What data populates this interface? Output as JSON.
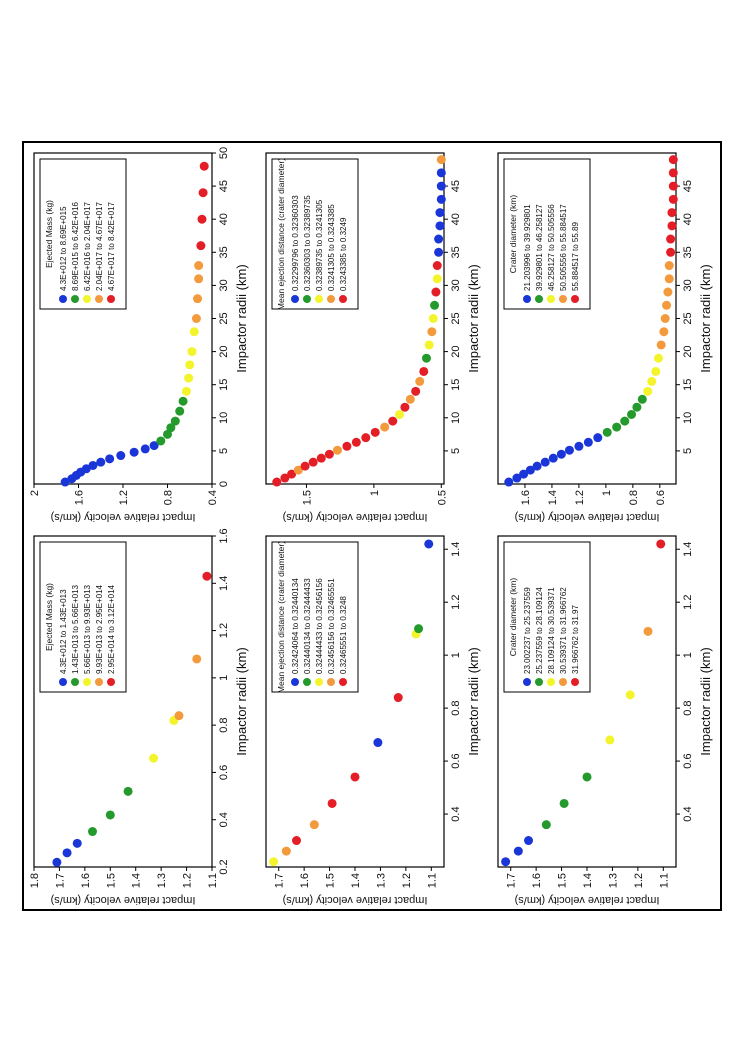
{
  "chart_data": [
    {
      "type": "scatter",
      "xlabel": "Impactor radii (km)",
      "ylabel": "Impact relative velocity (km/s)",
      "xlim": [
        0.2,
        1.6
      ],
      "ylim": [
        1.8,
        1.1
      ],
      "xticks": [
        "0.2",
        "0.4",
        "0.6",
        "0.8",
        "1",
        "1.2",
        "1.4",
        "1.6"
      ],
      "yticks": [
        "1.8",
        "1.7",
        "1.6",
        "1.5",
        "1.4",
        "1.3",
        "1.2",
        "1.1"
      ],
      "legend": {
        "title": "Ejected Mass (kg)",
        "entries": [
          "4.3E+012  to  1.43E+013",
          "1.43E+013  to  5.66E+013",
          "5.66E+013  to  9.93E+013",
          "9.93E+013  to  2.95E+014",
          "2.95E+014  to  3.12E+014"
        ],
        "colors": [
          "#1b36d8",
          "#249a2c",
          "#f4f42c",
          "#f39a3c",
          "#e41e26"
        ]
      },
      "points": [
        [
          0.22,
          1.71,
          0
        ],
        [
          0.26,
          1.67,
          0
        ],
        [
          0.3,
          1.63,
          0
        ],
        [
          0.35,
          1.57,
          1
        ],
        [
          0.42,
          1.5,
          1
        ],
        [
          0.52,
          1.43,
          1
        ],
        [
          0.66,
          1.33,
          2
        ],
        [
          0.82,
          1.25,
          2
        ],
        [
          0.84,
          1.23,
          3
        ],
        [
          1.08,
          1.16,
          3
        ],
        [
          1.43,
          1.12,
          4
        ]
      ]
    },
    {
      "type": "scatter",
      "xlabel": "Impactor radii (km)",
      "ylabel": "Impact relative velocity (km/s)",
      "xlim": [
        0,
        50
      ],
      "ylim": [
        2,
        0.4
      ],
      "xticks": [
        "0",
        "5",
        "10",
        "15",
        "20",
        "25",
        "30",
        "35",
        "40",
        "45",
        "50"
      ],
      "yticks": [
        "2",
        "1.6",
        "1.2",
        "0.8",
        "0.4"
      ],
      "legend": {
        "title": "Ejected Mass (kg)",
        "entries": [
          "4.3E+012  to  8.69E+015",
          "8.69E+015  to  6.42E+016",
          "6.42E+016  to  2.04E+017",
          "2.04E+017  to  4.67E+017",
          "4.67E+017  to  8.42E+017"
        ],
        "colors": [
          "#1b36d8",
          "#249a2c",
          "#f4f42c",
          "#f39a3c",
          "#e41e26"
        ]
      },
      "points": [
        [
          0.3,
          1.72,
          0
        ],
        [
          0.8,
          1.66,
          0
        ],
        [
          1.3,
          1.62,
          0
        ],
        [
          1.8,
          1.58,
          0
        ],
        [
          2.3,
          1.53,
          0
        ],
        [
          2.8,
          1.47,
          0
        ],
        [
          3.3,
          1.4,
          0
        ],
        [
          3.8,
          1.32,
          0
        ],
        [
          4.3,
          1.22,
          0
        ],
        [
          4.8,
          1.1,
          0
        ],
        [
          5.3,
          1.0,
          0
        ],
        [
          5.8,
          0.92,
          0
        ],
        [
          6.5,
          0.86,
          1
        ],
        [
          7.5,
          0.8,
          1
        ],
        [
          8.5,
          0.77,
          1
        ],
        [
          9.5,
          0.73,
          1
        ],
        [
          11,
          0.69,
          1
        ],
        [
          12.5,
          0.66,
          1
        ],
        [
          14,
          0.63,
          2
        ],
        [
          16,
          0.61,
          2
        ],
        [
          18,
          0.6,
          2
        ],
        [
          20,
          0.58,
          2
        ],
        [
          23,
          0.56,
          2
        ],
        [
          25,
          0.54,
          3
        ],
        [
          28,
          0.53,
          3
        ],
        [
          31,
          0.52,
          3
        ],
        [
          33,
          0.52,
          3
        ],
        [
          36,
          0.5,
          4
        ],
        [
          40,
          0.49,
          4
        ],
        [
          44,
          0.48,
          4
        ],
        [
          48,
          0.47,
          4
        ]
      ]
    },
    {
      "type": "scatter",
      "xlabel": "Impactor radii (km)",
      "ylabel": "Impact relative velocity (km/s)",
      "xlim": [
        0.2,
        1.45
      ],
      "ylim": [
        1.75,
        1.05
      ],
      "xticks": [
        "0.4",
        "0.6",
        "0.8",
        "1",
        "1.2",
        "1.4"
      ],
      "yticks": [
        "1.7",
        "1.6",
        "1.5",
        "1.4",
        "1.3",
        "1.2",
        "1.1"
      ],
      "legend": {
        "title": "Mean ejection distance (crater diameter)",
        "entries": [
          "0.32424064  to  0.32440134",
          "0.32440134  to  0.32444433",
          "0.32444433  to  0.32456156",
          "0.32456156  to  0.32465551",
          "0.32465551  to  0.3248"
        ],
        "colors": [
          "#1b36d8",
          "#249a2c",
          "#f4f42c",
          "#f39a3c",
          "#e41e26"
        ]
      },
      "points": [
        [
          0.22,
          1.72,
          2
        ],
        [
          0.26,
          1.67,
          3
        ],
        [
          0.3,
          1.63,
          4
        ],
        [
          0.36,
          1.56,
          3
        ],
        [
          0.44,
          1.49,
          4
        ],
        [
          0.54,
          1.4,
          4
        ],
        [
          0.67,
          1.31,
          0
        ],
        [
          0.84,
          1.23,
          4
        ],
        [
          1.08,
          1.16,
          2
        ],
        [
          1.1,
          1.15,
          1
        ],
        [
          1.42,
          1.11,
          0
        ]
      ]
    },
    {
      "type": "scatter",
      "xlabel": "Impactor radii (km)",
      "ylabel": "Impact relative velocity (km/s)",
      "xlim": [
        0,
        50
      ],
      "ylim": [
        1.8,
        0.48
      ],
      "xticks": [
        "5",
        "10",
        "15",
        "20",
        "25",
        "30",
        "35",
        "40",
        "45"
      ],
      "yticks": [
        "1.5",
        "1",
        "0.5"
      ],
      "legend": {
        "title": "Mean ejection distance (crater diameter)",
        "entries": [
          "0.32299796  to  0.32360303",
          "0.32360303  to  0.32389735",
          "0.32389735  to  0.3241305",
          "0.3241305  to  0.3243385",
          "0.3243385  to  0.3249"
        ],
        "colors": [
          "#1b36d8",
          "#249a2c",
          "#f4f42c",
          "#f39a3c",
          "#e41e26"
        ]
      },
      "points": [
        [
          0.3,
          1.72,
          4
        ],
        [
          0.9,
          1.66,
          4
        ],
        [
          1.5,
          1.61,
          4
        ],
        [
          2.1,
          1.56,
          3
        ],
        [
          2.7,
          1.51,
          4
        ],
        [
          3.3,
          1.45,
          4
        ],
        [
          3.9,
          1.39,
          4
        ],
        [
          4.5,
          1.33,
          4
        ],
        [
          5.1,
          1.27,
          3
        ],
        [
          5.7,
          1.2,
          4
        ],
        [
          6.3,
          1.13,
          4
        ],
        [
          7.0,
          1.06,
          4
        ],
        [
          7.8,
          0.99,
          4
        ],
        [
          8.6,
          0.92,
          3
        ],
        [
          9.5,
          0.86,
          4
        ],
        [
          10.5,
          0.81,
          2
        ],
        [
          11.6,
          0.77,
          4
        ],
        [
          12.8,
          0.73,
          3
        ],
        [
          14,
          0.69,
          4
        ],
        [
          15.5,
          0.66,
          3
        ],
        [
          17,
          0.63,
          4
        ],
        [
          19,
          0.61,
          1
        ],
        [
          21,
          0.59,
          2
        ],
        [
          23,
          0.57,
          3
        ],
        [
          25,
          0.56,
          2
        ],
        [
          27,
          0.55,
          1
        ],
        [
          29,
          0.54,
          4
        ],
        [
          31,
          0.53,
          2
        ],
        [
          33,
          0.53,
          4
        ],
        [
          35,
          0.52,
          0
        ],
        [
          37,
          0.52,
          0
        ],
        [
          39,
          0.51,
          0
        ],
        [
          41,
          0.51,
          0
        ],
        [
          43,
          0.5,
          0
        ],
        [
          45,
          0.5,
          0
        ],
        [
          47,
          0.5,
          0
        ],
        [
          49,
          0.5,
          3
        ]
      ]
    },
    {
      "type": "scatter",
      "xlabel": "Impactor radii (km)",
      "ylabel": "Impact relative velocity (km/s)",
      "xlim": [
        0.2,
        1.45
      ],
      "ylim": [
        1.75,
        1.05
      ],
      "xticks": [
        "0.4",
        "0.6",
        "0.8",
        "1",
        "1.2",
        "1.4"
      ],
      "yticks": [
        "1.7",
        "1.6",
        "1.5",
        "1.4",
        "1.3",
        "1.2",
        "1.1"
      ],
      "legend": {
        "title": "Crater diameter (km)",
        "entries": [
          "23.002237  to  25.237559",
          "25.237559  to  28.109124",
          "28.109124  to  30.539371",
          "30.539371  to  31.966762",
          "31.966762  to  31.97"
        ],
        "colors": [
          "#1b36d8",
          "#249a2c",
          "#f4f42c",
          "#f39a3c",
          "#e41e26"
        ]
      },
      "points": [
        [
          0.22,
          1.72,
          0
        ],
        [
          0.26,
          1.67,
          0
        ],
        [
          0.3,
          1.63,
          0
        ],
        [
          0.36,
          1.56,
          1
        ],
        [
          0.44,
          1.49,
          1
        ],
        [
          0.54,
          1.4,
          1
        ],
        [
          0.68,
          1.31,
          2
        ],
        [
          0.85,
          1.23,
          2
        ],
        [
          1.09,
          1.16,
          3
        ],
        [
          1.42,
          1.11,
          4
        ]
      ]
    },
    {
      "type": "scatter",
      "xlabel": "Impactor radii (km)",
      "ylabel": "Impact relative velocity (km/s)",
      "xlim": [
        0,
        50
      ],
      "ylim": [
        1.8,
        0.48
      ],
      "xticks": [
        "5",
        "10",
        "15",
        "20",
        "25",
        "30",
        "35",
        "40",
        "45"
      ],
      "yticks": [
        "1.6",
        "1.4",
        "1.2",
        "1",
        "0.8",
        "0.6"
      ],
      "legend": {
        "title": "Crater diameter (km)",
        "entries": [
          "21.203996  to  39.929801",
          "39.929801  to  46.258127",
          "46.258127  to  50.505556",
          "50.505556  to  55.884517",
          "55.884517  to  55.89"
        ],
        "colors": [
          "#1b36d8",
          "#249a2c",
          "#f4f42c",
          "#f39a3c",
          "#e41e26"
        ]
      },
      "points": [
        [
          0.3,
          1.72,
          0
        ],
        [
          0.9,
          1.66,
          0
        ],
        [
          1.5,
          1.61,
          0
        ],
        [
          2.1,
          1.56,
          0
        ],
        [
          2.7,
          1.51,
          0
        ],
        [
          3.3,
          1.45,
          0
        ],
        [
          3.9,
          1.39,
          0
        ],
        [
          4.5,
          1.33,
          0
        ],
        [
          5.1,
          1.27,
          0
        ],
        [
          5.7,
          1.2,
          0
        ],
        [
          6.3,
          1.13,
          0
        ],
        [
          7.0,
          1.06,
          0
        ],
        [
          7.8,
          0.99,
          1
        ],
        [
          8.6,
          0.92,
          1
        ],
        [
          9.5,
          0.86,
          1
        ],
        [
          10.5,
          0.81,
          1
        ],
        [
          11.6,
          0.77,
          1
        ],
        [
          12.8,
          0.73,
          1
        ],
        [
          14,
          0.69,
          2
        ],
        [
          15.5,
          0.66,
          2
        ],
        [
          17,
          0.63,
          2
        ],
        [
          19,
          0.61,
          2
        ],
        [
          21,
          0.59,
          3
        ],
        [
          23,
          0.57,
          3
        ],
        [
          25,
          0.56,
          3
        ],
        [
          27,
          0.55,
          3
        ],
        [
          29,
          0.54,
          3
        ],
        [
          31,
          0.53,
          3
        ],
        [
          33,
          0.53,
          3
        ],
        [
          35,
          0.52,
          4
        ],
        [
          37,
          0.52,
          4
        ],
        [
          39,
          0.51,
          4
        ],
        [
          41,
          0.51,
          4
        ],
        [
          43,
          0.5,
          4
        ],
        [
          45,
          0.5,
          4
        ],
        [
          47,
          0.5,
          4
        ],
        [
          49,
          0.5,
          4
        ]
      ]
    }
  ]
}
